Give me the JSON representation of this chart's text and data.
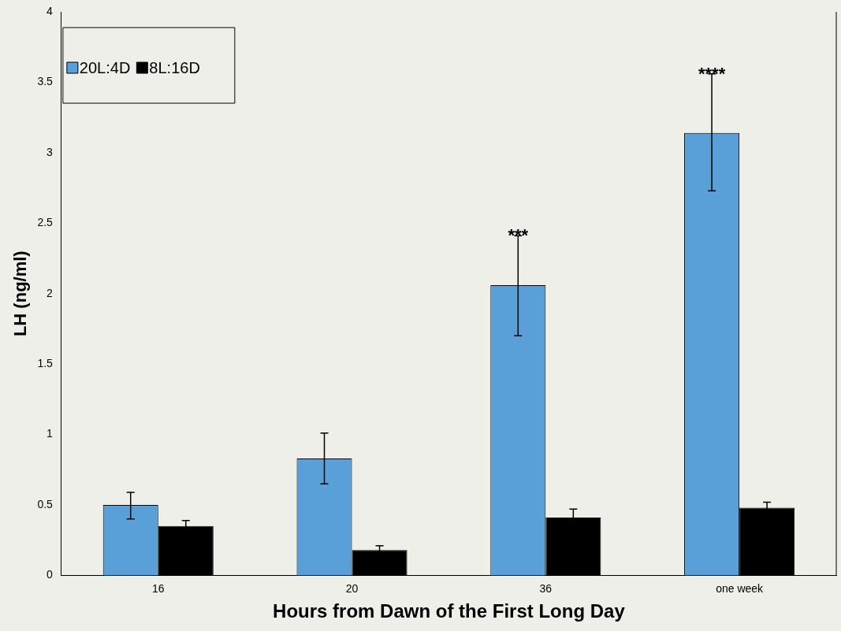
{
  "chart_data": {
    "type": "bar",
    "xlabel": "Hours from Dawn of the First Long Day",
    "ylabel": "LH (ng/ml)",
    "categories": [
      "16",
      "20",
      "36",
      "one week"
    ],
    "series": [
      {
        "name": "20L:4D",
        "color": "#5aa0d8",
        "values": [
          0.5,
          0.83,
          2.06,
          3.14
        ],
        "errors": [
          [
            0.4,
            0.59
          ],
          [
            0.65,
            1.01
          ],
          [
            1.7,
            2.41
          ],
          [
            2.73,
            3.56
          ]
        ]
      },
      {
        "name": "8L:16D",
        "color": "#000000",
        "values": [
          0.35,
          0.18,
          0.41,
          0.48
        ],
        "errors": [
          0.04,
          0.03,
          0.06,
          0.04
        ]
      }
    ],
    "ylim": [
      0,
      4
    ],
    "yticks": [
      0,
      0.5,
      1,
      1.5,
      2,
      2.5,
      3,
      3.5,
      4
    ],
    "grid": false,
    "legend": "top left",
    "annotations": [
      "***",
      "****"
    ]
  }
}
